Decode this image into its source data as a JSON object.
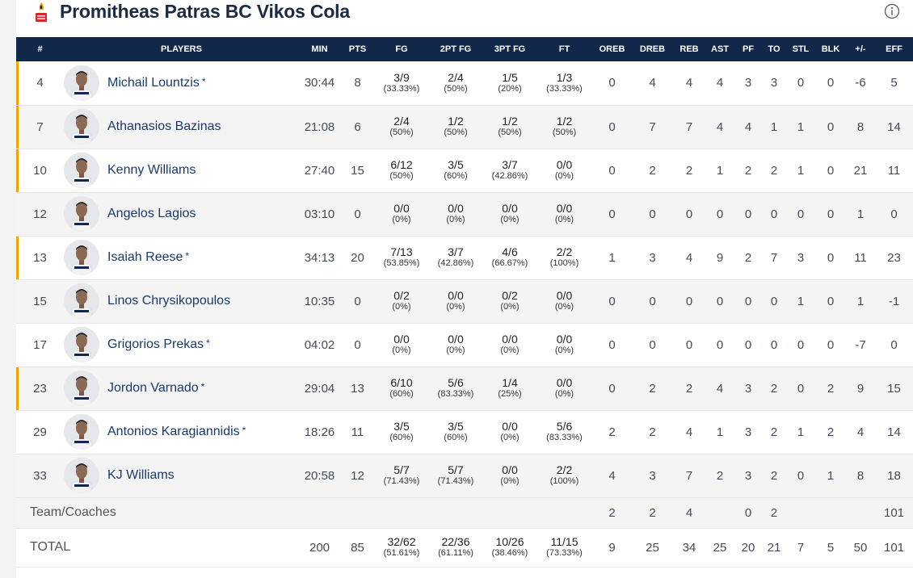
{
  "header": {
    "team_name": "Promitheas Patras BC Vikos Cola",
    "logo_icon": "team-logo-icon",
    "info_icon": "info-icon"
  },
  "columns": [
    "#",
    "PLAYERS",
    "MIN",
    "PTS",
    "FG",
    "2PT FG",
    "3PT FG",
    "FT",
    "OREB",
    "DREB",
    "REB",
    "AST",
    "PF",
    "TO",
    "STL",
    "BLK",
    "+/-",
    "EFF"
  ],
  "players": [
    {
      "num": "4",
      "name": "Michail Lountzis",
      "star": "*",
      "min": "30:44",
      "pts": "8",
      "fg": "3/9",
      "fg_pct": "(33.33%)",
      "fg2": "2/4",
      "fg2_pct": "(50%)",
      "fg3": "1/5",
      "fg3_pct": "(20%)",
      "ft": "1/3",
      "ft_pct": "(33.33%)",
      "oreb": "0",
      "dreb": "4",
      "reb": "4",
      "ast": "4",
      "pf": "3",
      "to": "3",
      "stl": "0",
      "blk": "0",
      "pm": "-6",
      "eff": "5"
    },
    {
      "num": "7",
      "name": "Athanasios Bazinas",
      "star": "",
      "min": "21:08",
      "pts": "6",
      "fg": "2/4",
      "fg_pct": "(50%)",
      "fg2": "1/2",
      "fg2_pct": "(50%)",
      "fg3": "1/2",
      "fg3_pct": "(50%)",
      "ft": "1/2",
      "ft_pct": "(50%)",
      "oreb": "0",
      "dreb": "7",
      "reb": "7",
      "ast": "4",
      "pf": "4",
      "to": "1",
      "stl": "1",
      "blk": "0",
      "pm": "8",
      "eff": "14"
    },
    {
      "num": "10",
      "name": "Kenny Williams",
      "star": "",
      "min": "27:40",
      "pts": "15",
      "fg": "6/12",
      "fg_pct": "(50%)",
      "fg2": "3/5",
      "fg2_pct": "(60%)",
      "fg3": "3/7",
      "fg3_pct": "(42.86%)",
      "ft": "0/0",
      "ft_pct": "(0%)",
      "oreb": "0",
      "dreb": "2",
      "reb": "2",
      "ast": "1",
      "pf": "2",
      "to": "2",
      "stl": "1",
      "blk": "0",
      "pm": "21",
      "eff": "11"
    },
    {
      "num": "12",
      "name": "Angelos Lagios",
      "star": "",
      "min": "03:10",
      "pts": "0",
      "fg": "0/0",
      "fg_pct": "(0%)",
      "fg2": "0/0",
      "fg2_pct": "(0%)",
      "fg3": "0/0",
      "fg3_pct": "(0%)",
      "ft": "0/0",
      "ft_pct": "(0%)",
      "oreb": "0",
      "dreb": "0",
      "reb": "0",
      "ast": "0",
      "pf": "0",
      "to": "0",
      "stl": "0",
      "blk": "0",
      "pm": "1",
      "eff": "0"
    },
    {
      "num": "13",
      "name": "Isaiah Reese",
      "star": "*",
      "min": "34:13",
      "pts": "20",
      "fg": "7/13",
      "fg_pct": "(53.85%)",
      "fg2": "3/7",
      "fg2_pct": "(42.86%)",
      "fg3": "4/6",
      "fg3_pct": "(66.67%)",
      "ft": "2/2",
      "ft_pct": "(100%)",
      "oreb": "1",
      "dreb": "3",
      "reb": "4",
      "ast": "9",
      "pf": "2",
      "to": "7",
      "stl": "3",
      "blk": "0",
      "pm": "11",
      "eff": "23"
    },
    {
      "num": "15",
      "name": "Linos Chrysikopoulos",
      "star": "",
      "min": "10:35",
      "pts": "0",
      "fg": "0/2",
      "fg_pct": "(0%)",
      "fg2": "0/0",
      "fg2_pct": "(0%)",
      "fg3": "0/2",
      "fg3_pct": "(0%)",
      "ft": "0/0",
      "ft_pct": "(0%)",
      "oreb": "0",
      "dreb": "0",
      "reb": "0",
      "ast": "0",
      "pf": "0",
      "to": "0",
      "stl": "1",
      "blk": "0",
      "pm": "1",
      "eff": "-1"
    },
    {
      "num": "17",
      "name": "Grigorios Prekas",
      "star": "*",
      "min": "04:02",
      "pts": "0",
      "fg": "0/0",
      "fg_pct": "(0%)",
      "fg2": "0/0",
      "fg2_pct": "(0%)",
      "fg3": "0/0",
      "fg3_pct": "(0%)",
      "ft": "0/0",
      "ft_pct": "(0%)",
      "oreb": "0",
      "dreb": "0",
      "reb": "0",
      "ast": "0",
      "pf": "0",
      "to": "0",
      "stl": "0",
      "blk": "0",
      "pm": "-7",
      "eff": "0"
    },
    {
      "num": "23",
      "name": "Jordon Varnado",
      "star": "*",
      "min": "29:04",
      "pts": "13",
      "fg": "6/10",
      "fg_pct": "(60%)",
      "fg2": "5/6",
      "fg2_pct": "(83.33%)",
      "fg3": "1/4",
      "fg3_pct": "(25%)",
      "ft": "0/0",
      "ft_pct": "(0%)",
      "oreb": "0",
      "dreb": "2",
      "reb": "2",
      "ast": "4",
      "pf": "3",
      "to": "2",
      "stl": "0",
      "blk": "2",
      "pm": "9",
      "eff": "15"
    },
    {
      "num": "29",
      "name": "Antonios Karagiannidis",
      "star": "*",
      "min": "18:26",
      "pts": "11",
      "fg": "3/5",
      "fg_pct": "(60%)",
      "fg2": "3/5",
      "fg2_pct": "(60%)",
      "fg3": "0/0",
      "fg3_pct": "(0%)",
      "ft": "5/6",
      "ft_pct": "(83.33%)",
      "oreb": "2",
      "dreb": "2",
      "reb": "4",
      "ast": "1",
      "pf": "3",
      "to": "2",
      "stl": "1",
      "blk": "2",
      "pm": "4",
      "eff": "14"
    },
    {
      "num": "33",
      "name": "KJ Williams",
      "star": "",
      "min": "20:58",
      "pts": "12",
      "fg": "5/7",
      "fg_pct": "(71.43%)",
      "fg2": "5/7",
      "fg2_pct": "(71.43%)",
      "fg3": "0/0",
      "fg3_pct": "(0%)",
      "ft": "2/2",
      "ft_pct": "(100%)",
      "oreb": "4",
      "dreb": "3",
      "reb": "7",
      "ast": "2",
      "pf": "3",
      "to": "2",
      "stl": "0",
      "blk": "1",
      "pm": "8",
      "eff": "18"
    }
  ],
  "starter_numbers": [
    "4",
    "7",
    "10",
    "13",
    "23"
  ],
  "team_coaches": {
    "label": "Team/Coaches",
    "oreb": "2",
    "dreb": "2",
    "reb": "4",
    "pf": "0",
    "to": "2",
    "eff": "101"
  },
  "total": {
    "label": "TOTAL",
    "min": "200",
    "pts": "85",
    "fg": "32/62",
    "fg_pct": "(51.61%)",
    "fg2": "22/36",
    "fg2_pct": "(61.11%)",
    "fg3": "10/26",
    "fg3_pct": "(38.46%)",
    "ft": "11/15",
    "ft_pct": "(73.33%)",
    "oreb": "9",
    "dreb": "25",
    "reb": "34",
    "ast": "25",
    "pf": "20",
    "to": "21",
    "stl": "7",
    "blk": "5",
    "pm": "50",
    "eff": "101"
  },
  "colors": {
    "header_bg": "#12284b",
    "starter_accent": "#f0a500",
    "name_color": "#1a3a6b"
  }
}
